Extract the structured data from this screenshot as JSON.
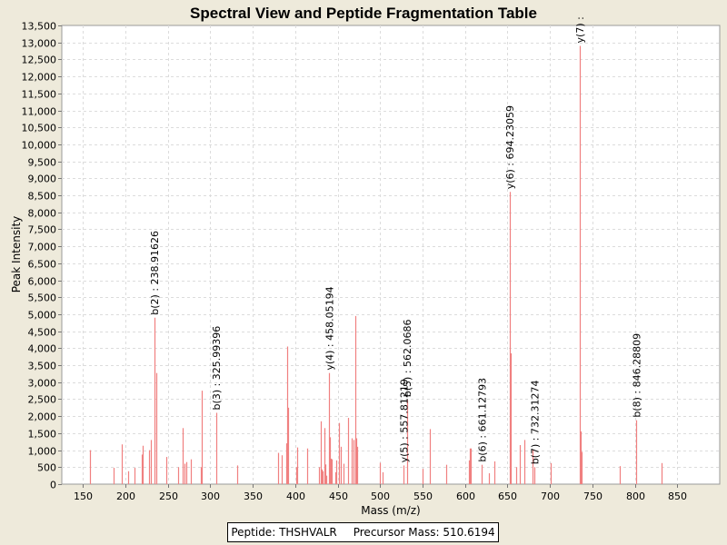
{
  "chart_data": {
    "type": "bar",
    "title": "Spectral View and Peptide Fragmentation Table",
    "xlabel": "Mass (m/z)",
    "ylabel": "Peak Intensity",
    "xlim": [
      125,
      900
    ],
    "ylim": [
      0,
      13500
    ],
    "x_ticks": [
      150,
      200,
      250,
      300,
      350,
      400,
      450,
      500,
      550,
      600,
      650,
      700,
      750,
      800,
      850
    ],
    "y_ticks": [
      0,
      500,
      1000,
      1500,
      2000,
      2500,
      3000,
      3500,
      4000,
      4500,
      5000,
      5500,
      6000,
      6500,
      7000,
      7500,
      8000,
      8500,
      9000,
      9500,
      10000,
      10500,
      11000,
      11500,
      12000,
      12500,
      13000,
      13500
    ],
    "y_tick_labels": [
      "0",
      "500",
      "1,000",
      "1,500",
      "2,000",
      "2,500",
      "3,000",
      "3,500",
      "4,000",
      "4,500",
      "5,000",
      "5,500",
      "6,000",
      "6,500",
      "7,000",
      "7,500",
      "8,000",
      "8,500",
      "9,000",
      "9,500",
      "10,000",
      "10,500",
      "11,000",
      "11,500",
      "12,000",
      "12,500",
      "13,000",
      "13,500"
    ],
    "grid": true,
    "bar_color": "#f08080",
    "peaks": [
      [
        158,
        1000
      ],
      [
        186,
        480
      ],
      [
        196,
        1170
      ],
      [
        203,
        380
      ],
      [
        211,
        480
      ],
      [
        219,
        870
      ],
      [
        220,
        1130
      ],
      [
        228,
        1000
      ],
      [
        230,
        1300
      ],
      [
        234,
        4900
      ],
      [
        236,
        3270
      ],
      [
        248,
        800
      ],
      [
        262,
        500
      ],
      [
        267,
        1650
      ],
      [
        269,
        600
      ],
      [
        272,
        650
      ],
      [
        277,
        730
      ],
      [
        289,
        500
      ],
      [
        290,
        2750
      ],
      [
        307,
        2100
      ],
      [
        332,
        550
      ],
      [
        380,
        920
      ],
      [
        384,
        850
      ],
      [
        389,
        1200
      ],
      [
        391,
        4050
      ],
      [
        392,
        2250
      ],
      [
        401,
        500
      ],
      [
        402,
        1080
      ],
      [
        414,
        1050
      ],
      [
        428,
        500
      ],
      [
        430,
        1850
      ],
      [
        431,
        430
      ],
      [
        432,
        380
      ],
      [
        434,
        1650
      ],
      [
        435,
        580
      ],
      [
        436,
        250
      ],
      [
        440,
        3270
      ],
      [
        441,
        1380
      ],
      [
        442,
        750
      ],
      [
        443,
        730
      ],
      [
        447,
        350
      ],
      [
        448,
        700
      ],
      [
        451,
        1800
      ],
      [
        454,
        1100
      ],
      [
        457,
        600
      ],
      [
        462,
        1950
      ],
      [
        467,
        1350
      ],
      [
        469,
        1300
      ],
      [
        471,
        4950
      ],
      [
        472,
        1350
      ],
      [
        473,
        1100
      ],
      [
        500,
        630
      ],
      [
        503,
        350
      ],
      [
        528,
        550
      ],
      [
        532,
        2480
      ],
      [
        550,
        450
      ],
      [
        558,
        1620
      ],
      [
        578,
        570
      ],
      [
        605,
        700
      ],
      [
        606,
        1050
      ],
      [
        607,
        1050
      ],
      [
        620,
        570
      ],
      [
        628,
        320
      ],
      [
        635,
        670
      ],
      [
        653,
        8600
      ],
      [
        654,
        3850
      ],
      [
        660,
        500
      ],
      [
        665,
        1150
      ],
      [
        670,
        1300
      ],
      [
        680,
        1000
      ],
      [
        682,
        500
      ],
      [
        701,
        620
      ],
      [
        735,
        12900
      ],
      [
        736,
        1550
      ],
      [
        737,
        950
      ],
      [
        782,
        530
      ],
      [
        802,
        1880
      ],
      [
        831,
        620
      ]
    ],
    "annotations": [
      {
        "label": "b(2) : 238.91626",
        "x": 234,
        "y": 4900
      },
      {
        "label": "b(3) : 325.99396",
        "x": 307,
        "y": 2100
      },
      {
        "label": "y(4) : 458.05194",
        "x": 440,
        "y": 3270
      },
      {
        "label": "y(5) : 557.81219",
        "x": 528,
        "y": 550
      },
      {
        "label": "b(5) : 562.0686",
        "x": 532,
        "y": 2480
      },
      {
        "label": "b(6) : 661.12793",
        "x": 620,
        "y": 570
      },
      {
        "label": "y(6) : 694.23059",
        "x": 653,
        "y": 8600
      },
      {
        "label": "b(7) : 732.31274",
        "x": 682,
        "y": 500
      },
      {
        "label": "y(7) :",
        "x": 735,
        "y": 12900
      },
      {
        "label": "b(8) : 846.28809",
        "x": 802,
        "y": 1880
      }
    ]
  },
  "footer": {
    "peptide_label": "Peptide",
    "peptide_value": "THSHVALR",
    "precursor_label": "Precursor Mass",
    "precursor_value": "510.6194"
  }
}
